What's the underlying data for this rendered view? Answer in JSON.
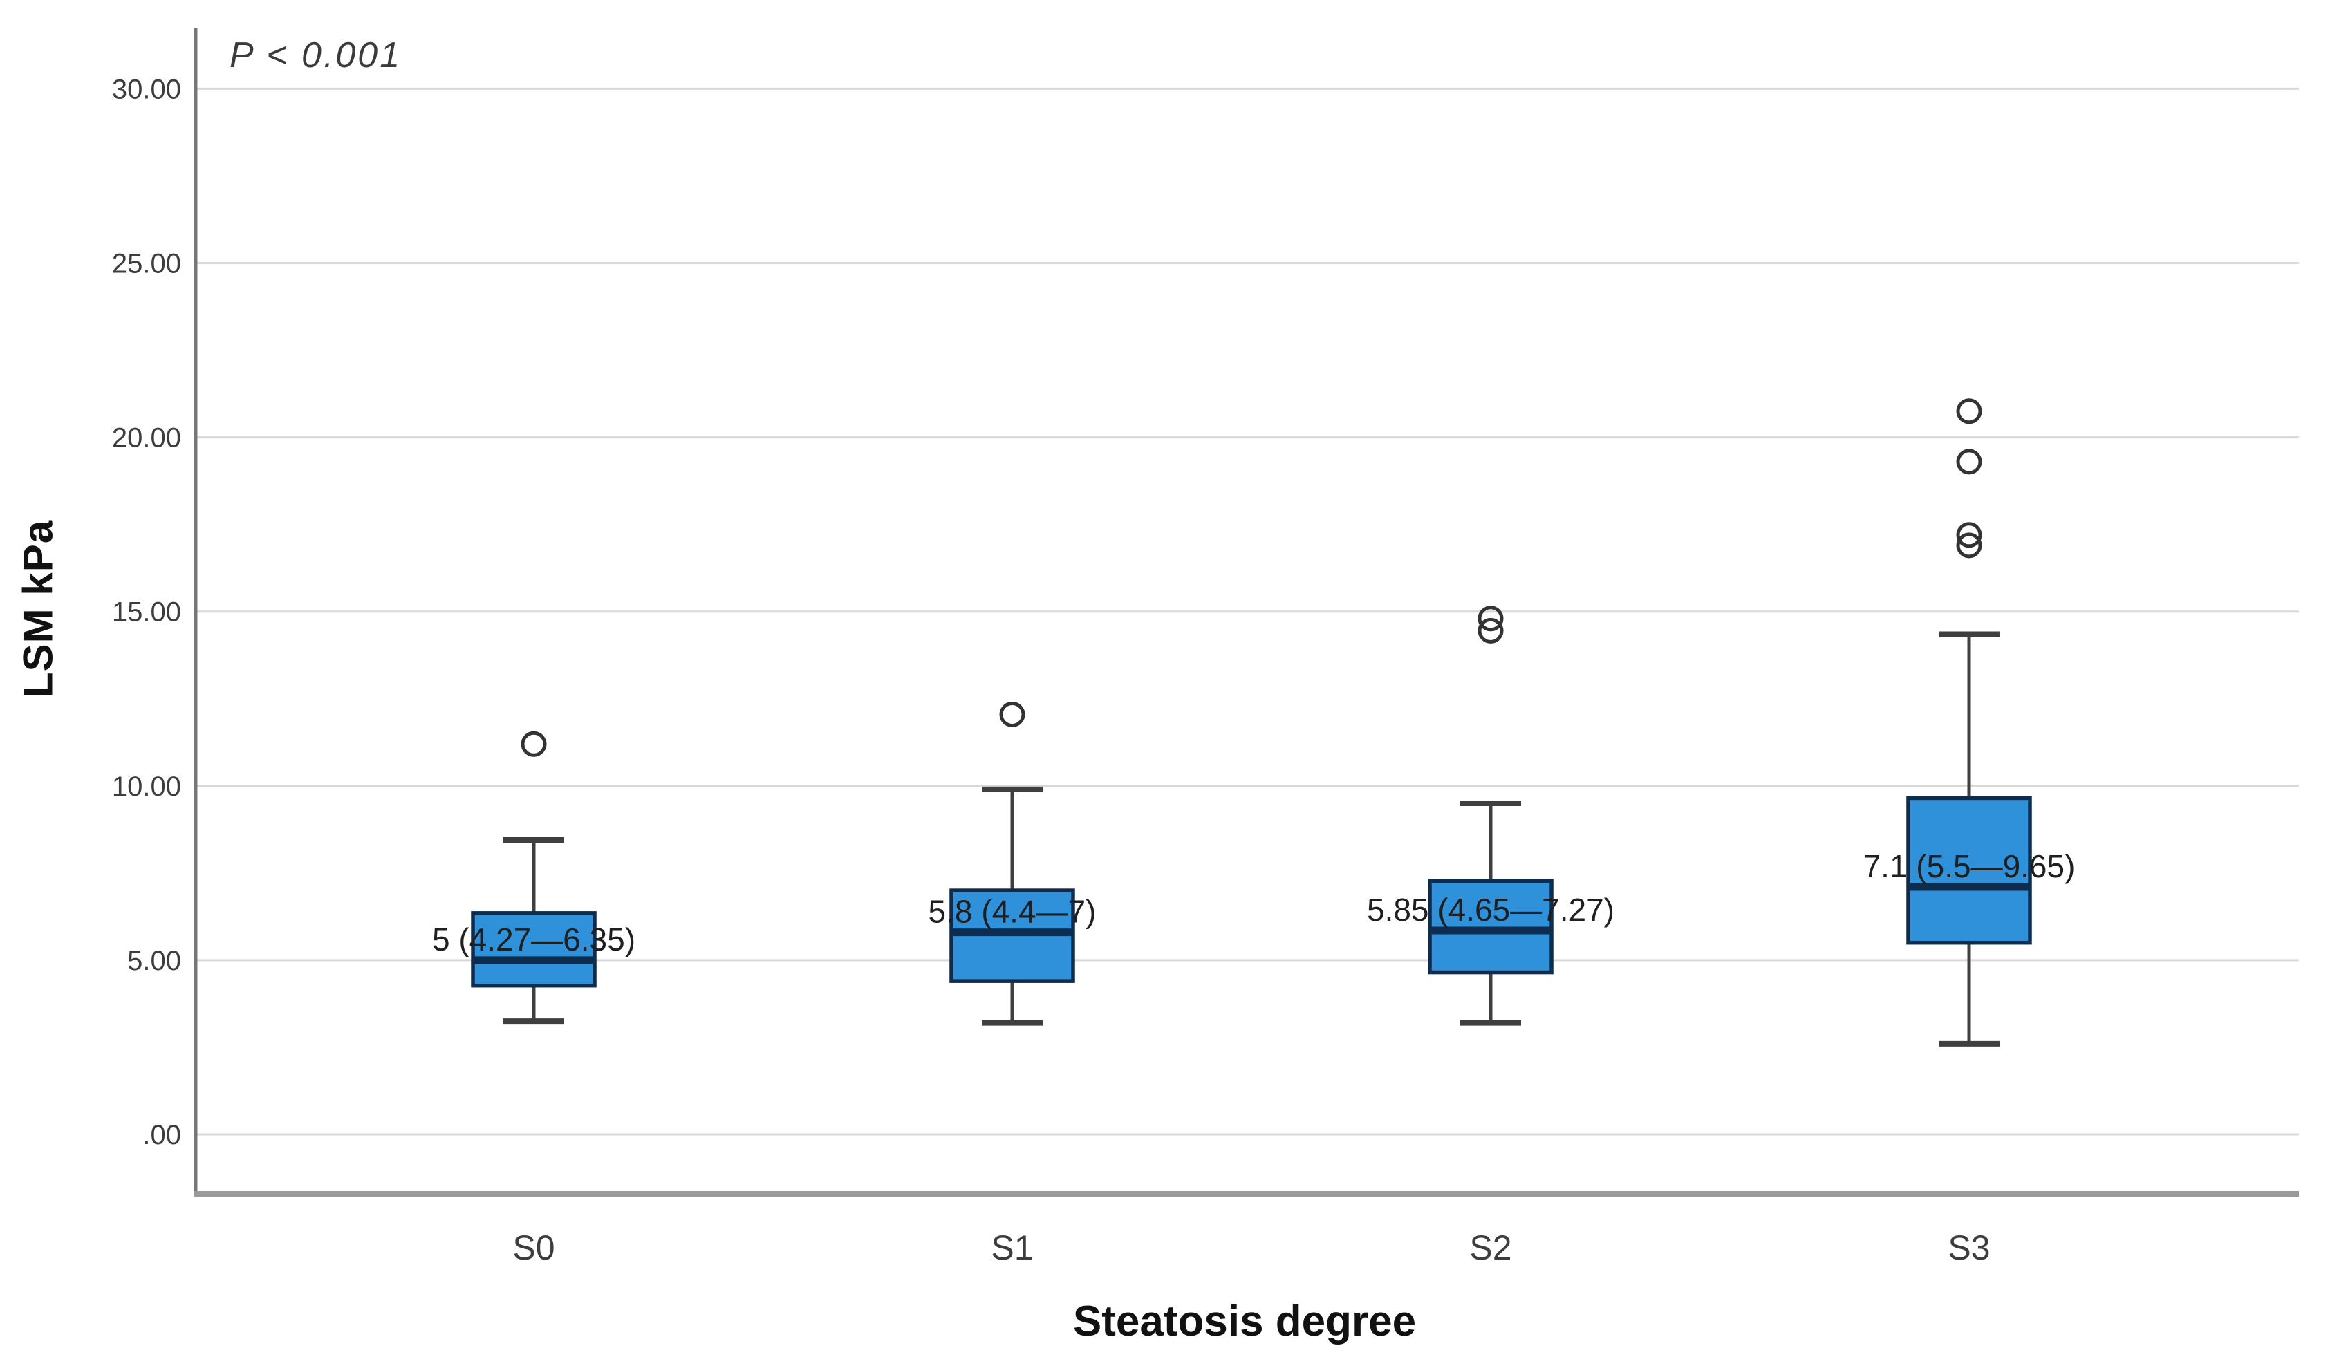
{
  "page": {
    "background": "#FFFFFF"
  },
  "chart": {
    "colors": {
      "box_fill": "#2E91DA",
      "box_border": "#0E2C4E",
      "median_line": "#0E2C4E",
      "whisker": "#3F3F3F",
      "outlier_ring": "#333333",
      "gridline": "#D8D8D8",
      "y_axis_line": "#777777",
      "x_baseline": "#9A9A9A",
      "tick_text": "#3D3D3D",
      "label_text": "#1F1F1F"
    }
  },
  "chart_data": {
    "type": "boxplot",
    "title": "",
    "xlabel": "Steatosis degree",
    "ylabel": "LSM kPa",
    "annotation": "P < 0.001",
    "ylim": [
      0,
      30
    ],
    "grid": true,
    "legend": false,
    "yticks": [
      {
        "value": 0,
        "label": ".00"
      },
      {
        "value": 5,
        "label": "5.00"
      },
      {
        "value": 10,
        "label": "10.00"
      },
      {
        "value": 15,
        "label": "15.00"
      },
      {
        "value": 20,
        "label": "20.00"
      },
      {
        "value": 25,
        "label": "25.00"
      },
      {
        "value": 30,
        "label": "30.00"
      }
    ],
    "categories": [
      "S0",
      "S1",
      "S2",
      "S3"
    ],
    "boxes": [
      {
        "category": "S0",
        "label": "5 (4.27—6.35)",
        "median": 5,
        "q1": 4.27,
        "q3": 6.35,
        "whisker_low": 3.25,
        "whisker_high": 8.45,
        "outliers": [
          11.2
        ]
      },
      {
        "category": "S1",
        "label": "5.8 (4.4—7)",
        "median": 5.8,
        "q1": 4.4,
        "q3": 7,
        "whisker_low": 3.2,
        "whisker_high": 9.9,
        "outliers": [
          12.05
        ]
      },
      {
        "category": "S2",
        "label": "5.85 (4.65—7.27)",
        "median": 5.85,
        "q1": 4.65,
        "q3": 7.27,
        "whisker_low": 3.2,
        "whisker_high": 9.5,
        "outliers": [
          14.45,
          14.8
        ]
      },
      {
        "category": "S3",
        "label": "7.1 (5.5—9.65)",
        "median": 7.1,
        "q1": 5.5,
        "q3": 9.65,
        "whisker_low": 2.6,
        "whisker_high": 14.35,
        "outliers": [
          16.9,
          17.2,
          19.3,
          20.75
        ]
      }
    ]
  }
}
